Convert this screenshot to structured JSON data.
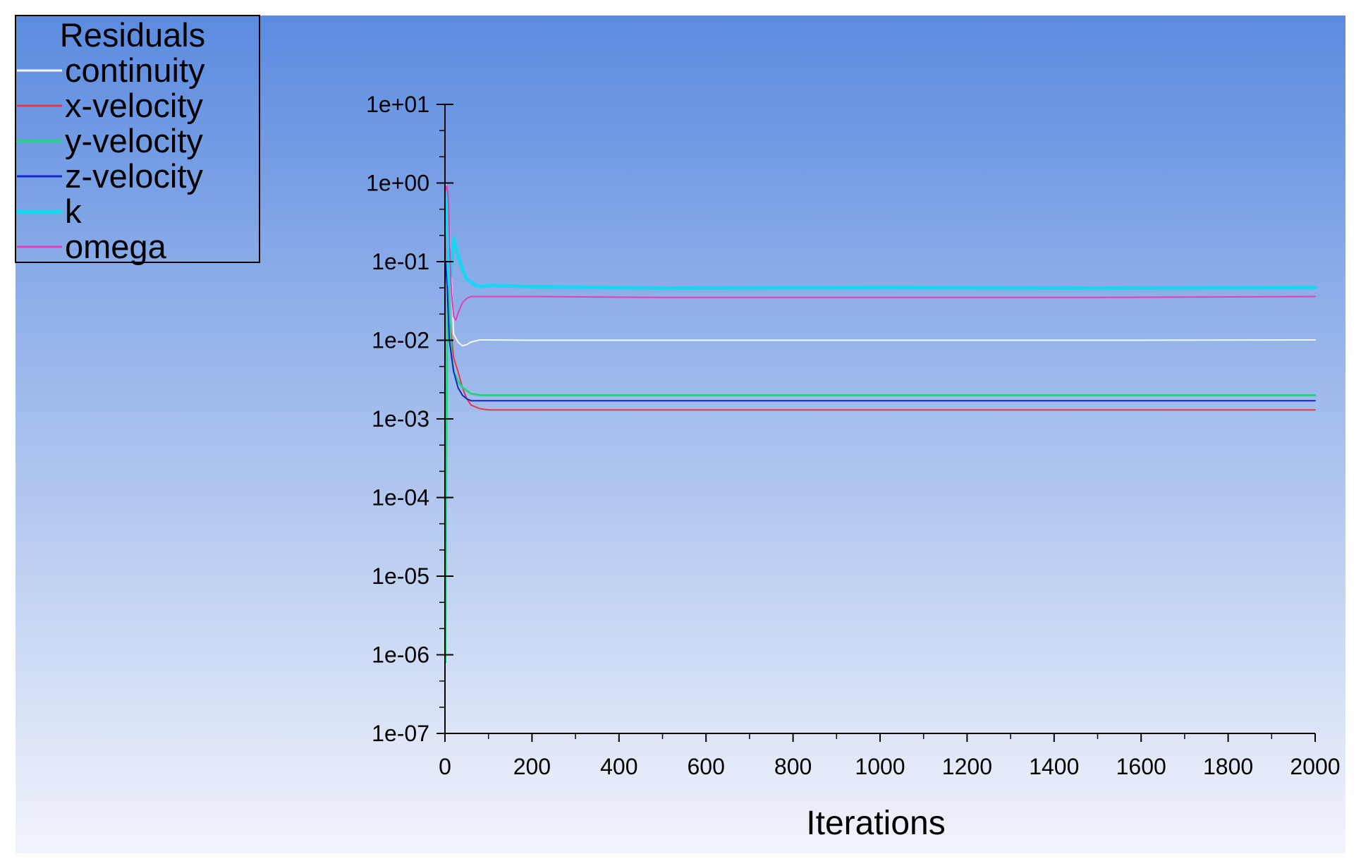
{
  "colors": {
    "background_top": "#5b8be0",
    "background_bottom": "#f2f4fb",
    "axis": "#000000"
  },
  "legend": {
    "title": "Residuals",
    "placement": "top-left"
  },
  "chart_data": {
    "type": "line",
    "title": "",
    "xlabel": "Iterations",
    "ylabel": "",
    "xlim": [
      0,
      2000
    ],
    "ylim": [
      1e-07,
      10
    ],
    "yscale": "log",
    "grid": false,
    "x_ticks": [
      0,
      200,
      400,
      600,
      800,
      1000,
      1200,
      1400,
      1600,
      1800,
      2000
    ],
    "x_tick_labels": [
      "0",
      "200",
      "400",
      "600",
      "800",
      "1000",
      "1200",
      "1400",
      "1600",
      "1800",
      "2000"
    ],
    "y_ticks": [
      1e-07,
      1e-06,
      1e-05,
      0.0001,
      0.001,
      0.01,
      0.1,
      1,
      10
    ],
    "y_tick_labels": [
      "1e-07",
      "1e-06",
      "1e-05",
      "1e-04",
      "1e-03",
      "1e-02",
      "1e-01",
      "1e+00",
      "1e+01"
    ],
    "series": [
      {
        "name": "continuity",
        "color": "#f4f6fb",
        "width": 2,
        "x": [
          1,
          5,
          10,
          20,
          30,
          40,
          50,
          60,
          80,
          100,
          200,
          500,
          1000,
          1500,
          2000
        ],
        "y": [
          1.0,
          0.6,
          0.25,
          0.012,
          0.0095,
          0.0085,
          0.0088,
          0.0095,
          0.0101,
          0.0101,
          0.01,
          0.01,
          0.01,
          0.01,
          0.0101
        ]
      },
      {
        "name": "x-velocity",
        "color": "#e8364a",
        "width": 2,
        "x": [
          1,
          5,
          10,
          20,
          30,
          40,
          50,
          60,
          80,
          100,
          200,
          500,
          1000,
          1500,
          2000
        ],
        "y": [
          0.8,
          0.08,
          0.02,
          0.006,
          0.004,
          0.0025,
          0.0018,
          0.0015,
          0.00135,
          0.0013,
          0.0013,
          0.0013,
          0.0013,
          0.0013,
          0.0013
        ]
      },
      {
        "name": "y-velocity",
        "color": "#22d483",
        "width": 3,
        "x": [
          1,
          3,
          5,
          7,
          10,
          15,
          20,
          30,
          40,
          60,
          80,
          100,
          200,
          500,
          1000,
          1500,
          2000
        ],
        "y": [
          8e-07,
          0.0004,
          0.008,
          0.1,
          0.02,
          0.006,
          0.004,
          0.003,
          0.0025,
          0.0021,
          0.002,
          0.002,
          0.002,
          0.002,
          0.002,
          0.002,
          0.002
        ]
      },
      {
        "name": "z-velocity",
        "color": "#1526c4",
        "width": 2,
        "x": [
          1,
          5,
          10,
          20,
          30,
          40,
          50,
          60,
          80,
          100,
          200,
          500,
          1000,
          1500,
          2000
        ],
        "y": [
          0.1,
          0.05,
          0.01,
          0.004,
          0.0025,
          0.002,
          0.0018,
          0.0017,
          0.0017,
          0.0017,
          0.0017,
          0.0017,
          0.0017,
          0.0017,
          0.0017
        ]
      },
      {
        "name": "k",
        "color": "#1ad4f0",
        "width": 5,
        "x": [
          1,
          5,
          10,
          15,
          20,
          30,
          40,
          50,
          60,
          70,
          80,
          100,
          200,
          500,
          1000,
          1500,
          2000
        ],
        "y": [
          0.9,
          0.3,
          0.05,
          0.1,
          0.2,
          0.12,
          0.08,
          0.06,
          0.055,
          0.05,
          0.048,
          0.05,
          0.048,
          0.046,
          0.047,
          0.046,
          0.047
        ]
      },
      {
        "name": "omega",
        "color": "#e83cb4",
        "width": 2,
        "x": [
          1,
          3,
          5,
          8,
          12,
          15,
          20,
          25,
          30,
          40,
          50,
          60,
          70,
          80,
          100,
          200,
          500,
          1000,
          1500,
          2000
        ],
        "y": [
          0.8,
          0.9,
          0.9,
          0.6,
          0.1,
          0.04,
          0.02,
          0.018,
          0.022,
          0.03,
          0.034,
          0.036,
          0.036,
          0.036,
          0.036,
          0.036,
          0.035,
          0.035,
          0.035,
          0.036
        ]
      }
    ]
  }
}
